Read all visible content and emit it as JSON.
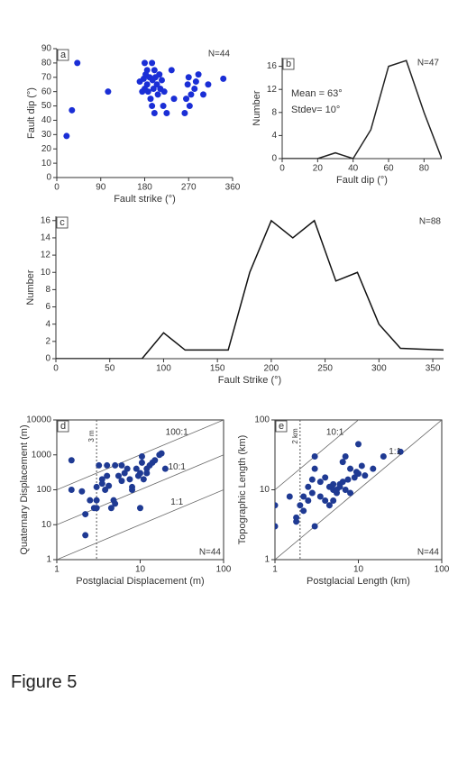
{
  "caption": "Figure 5",
  "chart_data": [
    {
      "type": "scatter",
      "panel_label": "a",
      "n_label": "N=44",
      "n_corner": "top-right",
      "frame": false,
      "xlabel": "Fault strike (°)",
      "ylabel": "Fault dip (°)",
      "color": "#1a2ed6",
      "xlim": [
        0,
        360
      ],
      "ylim": [
        0,
        90
      ],
      "xticks": [
        0,
        90,
        180,
        270,
        360
      ],
      "yticks": [
        0,
        10,
        20,
        30,
        40,
        50,
        60,
        70,
        80,
        90
      ],
      "x": [
        20,
        31,
        42,
        105,
        170,
        175,
        180,
        182,
        185,
        187,
        190,
        192,
        195,
        196,
        198,
        200,
        202,
        205,
        207,
        210,
        212,
        215,
        218,
        200,
        195,
        180,
        185,
        220,
        225,
        235,
        240,
        262,
        265,
        268,
        270,
        272,
        275,
        282,
        285,
        290,
        300,
        310,
        341,
        178
      ],
      "values": [
        29,
        47,
        80,
        60,
        67,
        60,
        80,
        72,
        65,
        60,
        70,
        55,
        80,
        68,
        62,
        75,
        70,
        65,
        58,
        72,
        62,
        68,
        50,
        45,
        50,
        62,
        75,
        60,
        45,
        75,
        55,
        45,
        55,
        65,
        70,
        50,
        58,
        62,
        67,
        72,
        58,
        65,
        69,
        69
      ]
    },
    {
      "type": "line",
      "panel_label": "b",
      "n_label": "N=47",
      "n_corner": "top-right",
      "frame": false,
      "annotations": [
        "Mean = 63°",
        "Stdev= 10°"
      ],
      "xlabel": "Fault dip (°)",
      "ylabel": "Number",
      "color": "#222222",
      "xlim": [
        0,
        90
      ],
      "ylim": [
        0,
        17.5
      ],
      "xticks": [
        0,
        20,
        40,
        60,
        80
      ],
      "yticks": [
        0,
        4,
        8,
        12,
        16
      ],
      "x": [
        0,
        10,
        20,
        30,
        40,
        50,
        60,
        70,
        80,
        90
      ],
      "values": [
        0,
        0,
        0,
        1,
        0,
        5,
        16,
        17,
        8,
        0
      ]
    },
    {
      "type": "line",
      "panel_label": "c",
      "n_label": "N=88",
      "n_corner": "top-right",
      "frame": false,
      "xlabel": "Fault Strike (°)",
      "ylabel": "Number",
      "color": "#111111",
      "xlim": [
        0,
        360
      ],
      "ylim": [
        0,
        16.5
      ],
      "xticks": [
        0,
        50,
        100,
        150,
        200,
        250,
        300,
        350
      ],
      "yticks": [
        0,
        2,
        4,
        6,
        8,
        10,
        12,
        14,
        16
      ],
      "x": [
        0,
        20,
        40,
        60,
        80,
        100,
        120,
        140,
        160,
        180,
        200,
        220,
        240,
        260,
        280,
        300,
        320,
        340,
        360
      ],
      "values": [
        0,
        0,
        0,
        0,
        0,
        3,
        1,
        1,
        1,
        10,
        16,
        14,
        16,
        9,
        10,
        4,
        1.2,
        1.1,
        1
      ]
    },
    {
      "type": "scatter",
      "panel_label": "d",
      "n_label": "N=44",
      "n_corner": "bottom-right",
      "frame": true,
      "log_x": true,
      "log_y": true,
      "xlabel": "Postglacial Displacement (m)",
      "ylabel": "Quaternary Displacement  (m)",
      "color": "#1f3a93",
      "xlim": [
        1,
        100
      ],
      "ylim": [
        1,
        10000
      ],
      "xticks": [
        1,
        10,
        100
      ],
      "yticks": [
        1,
        10,
        100,
        1000,
        10000
      ],
      "ref_lines": [
        {
          "label": "100:1",
          "ratio": 100
        },
        {
          "label": "10:1",
          "ratio": 10
        },
        {
          "label": "1:1",
          "ratio": 1
        }
      ],
      "vline": {
        "label": "3 m",
        "x": 3
      },
      "x": [
        1.5,
        1.5,
        2,
        2.2,
        2.2,
        2.5,
        2.8,
        3,
        3,
        3.2,
        3.5,
        3.5,
        3.8,
        4,
        4,
        4.2,
        4.5,
        4.8,
        5,
        5,
        5.5,
        6,
        6,
        6.5,
        7,
        7.5,
        8,
        8,
        9,
        9.5,
        10,
        10,
        10.5,
        10.5,
        11,
        12,
        12,
        13,
        14,
        15,
        17,
        18,
        20,
        3
      ],
      "values": [
        700,
        100,
        90,
        20,
        5,
        50,
        30,
        120,
        50,
        500,
        200,
        150,
        100,
        500,
        250,
        130,
        30,
        50,
        40,
        500,
        250,
        500,
        180,
        300,
        400,
        200,
        120,
        100,
        400,
        250,
        300,
        30,
        900,
        600,
        200,
        400,
        300,
        500,
        600,
        700,
        1000,
        1100,
        400,
        30
      ]
    },
    {
      "type": "scatter",
      "panel_label": "e",
      "n_label": "N=44",
      "n_corner": "bottom-right",
      "frame": true,
      "log_x": true,
      "log_y": true,
      "xlabel": "Postglacial Length (km)",
      "ylabel": "Topographic Length (km)",
      "color": "#1f3a93",
      "xlim": [
        1,
        100
      ],
      "ylim": [
        1,
        100
      ],
      "xticks": [
        1,
        10,
        100
      ],
      "yticks": [
        1,
        10,
        100
      ],
      "ref_lines": [
        {
          "label": "10:1",
          "ratio": 10
        },
        {
          "label": "1:1",
          "ratio": 1
        }
      ],
      "vline": {
        "label": "2 km",
        "x": 2
      },
      "x": [
        1,
        1,
        1.5,
        1.8,
        1.8,
        2,
        2.2,
        2.5,
        2.5,
        2.8,
        2.8,
        3,
        3,
        3,
        3.5,
        4,
        4.5,
        5,
        5,
        5.5,
        5.5,
        6,
        6,
        6.5,
        6.5,
        7,
        7,
        8,
        8,
        9,
        9.5,
        10,
        10,
        11,
        12,
        15,
        20,
        32,
        4,
        3.5,
        2.2,
        5,
        7.5,
        4.5
      ],
      "values": [
        6,
        3,
        8,
        4,
        3.5,
        6,
        5,
        7,
        11,
        14,
        9,
        3,
        20,
        30,
        8,
        7,
        11,
        10,
        7,
        9,
        10,
        12,
        11,
        13,
        25,
        30,
        10,
        20,
        9,
        15,
        18,
        45,
        17,
        22,
        16,
        20,
        30,
        35,
        15,
        13,
        8,
        12,
        14,
        6
      ]
    }
  ]
}
